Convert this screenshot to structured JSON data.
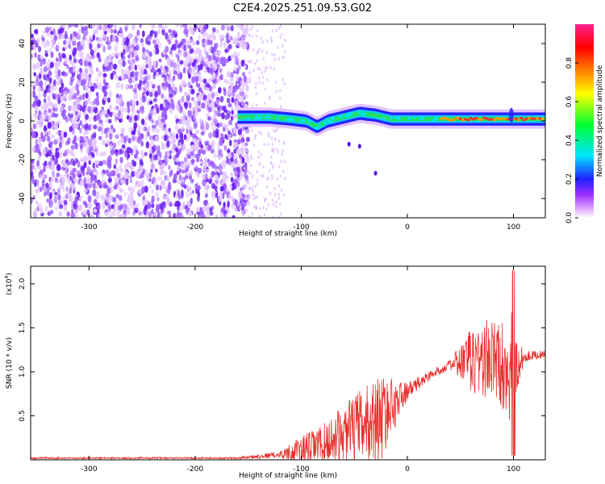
{
  "title": "C2E4.2025.251.09.53.G02",
  "colors": {
    "snr_line": "#e8302c",
    "axis": "#000000",
    "spectro_sparse": "#8a3cff",
    "spectro_dark": "#5a10ea"
  },
  "chart_data": [
    {
      "type": "heatmap",
      "name": "spectrogram",
      "xlabel": "Height of straight line (km)",
      "ylabel": "Frequency (Hz)",
      "xlim": [
        -355,
        130
      ],
      "ylim": [
        -50,
        50
      ],
      "xticks": [
        -300,
        -200,
        -100,
        0,
        100
      ],
      "xtick_labels": [
        "-300",
        "-200",
        "-100",
        "0",
        "100"
      ],
      "yticks": [
        -40,
        -20,
        0,
        20,
        40
      ],
      "ytick_labels": [
        "-40",
        "-20",
        "0",
        "20",
        "40"
      ],
      "description_noise_region": [
        -355,
        -160
      ],
      "signal_band_center_hz": [
        [
          -160,
          2
        ],
        [
          -130,
          2
        ],
        [
          -110,
          1
        ],
        [
          -95,
          0
        ],
        [
          -85,
          -3
        ],
        [
          -75,
          0
        ],
        [
          -60,
          2
        ],
        [
          -45,
          4
        ],
        [
          -30,
          3
        ],
        [
          -15,
          1
        ],
        [
          0,
          1
        ],
        [
          30,
          1
        ],
        [
          60,
          1
        ],
        [
          100,
          1
        ],
        [
          130,
          1
        ]
      ],
      "colorbar": {
        "label": "Normalized spectral amplitude",
        "range": [
          0.0,
          1.0
        ],
        "ticks": [
          0.0,
          0.2,
          0.4,
          0.6,
          0.8
        ],
        "tick_labels": [
          "0.0",
          "0.2",
          "0.4",
          "0.6",
          "0.8"
        ],
        "colors": [
          "#ffffff",
          "#e6b3ff",
          "#8000ff",
          "#0000ff",
          "#00e5ff",
          "#00ff00",
          "#ffff00",
          "#ff8000",
          "#ff0000",
          "#ff00aa"
        ]
      }
    },
    {
      "type": "line",
      "name": "snr",
      "xlabel": "Height of straight line (km)",
      "ylabel": "SNR (10 * v/v)",
      "y_scale_label": "(x10",
      "y_scale_exp": "4",
      "xlim": [
        -355,
        130
      ],
      "ylim": [
        0.0,
        2.2
      ],
      "xticks": [
        -300,
        -200,
        -100,
        0,
        100
      ],
      "xtick_labels": [
        "-300",
        "-200",
        "-100",
        "0",
        "100"
      ],
      "yticks": [
        0.5,
        1.0,
        1.5,
        2.0
      ],
      "ytick_labels": [
        "0.5",
        "1.0",
        "1.5",
        "2.0"
      ],
      "envelope": [
        {
          "x": -355,
          "y": 0.02,
          "amp": 0.01
        },
        {
          "x": -160,
          "y": 0.02,
          "amp": 0.01
        },
        {
          "x": -120,
          "y": 0.06,
          "amp": 0.04
        },
        {
          "x": -100,
          "y": 0.12,
          "amp": 0.15
        },
        {
          "x": -80,
          "y": 0.18,
          "amp": 0.22
        },
        {
          "x": -60,
          "y": 0.28,
          "amp": 0.35
        },
        {
          "x": -40,
          "y": 0.4,
          "amp": 0.45
        },
        {
          "x": -25,
          "y": 0.48,
          "amp": 0.5
        },
        {
          "x": -10,
          "y": 0.66,
          "amp": 0.25
        },
        {
          "x": 0,
          "y": 0.78,
          "amp": 0.1
        },
        {
          "x": 20,
          "y": 0.95,
          "amp": 0.06
        },
        {
          "x": 40,
          "y": 1.08,
          "amp": 0.05
        },
        {
          "x": 55,
          "y": 1.12,
          "amp": 0.3
        },
        {
          "x": 70,
          "y": 1.15,
          "amp": 0.5
        },
        {
          "x": 85,
          "y": 1.12,
          "amp": 0.45
        },
        {
          "x": 95,
          "y": 1.05,
          "amp": 0.6
        },
        {
          "x": 100,
          "y": 1.0,
          "amp": 0.7
        },
        {
          "x": 110,
          "y": 1.18,
          "amp": 0.06
        },
        {
          "x": 130,
          "y": 1.2,
          "amp": 0.04
        }
      ]
    }
  ]
}
